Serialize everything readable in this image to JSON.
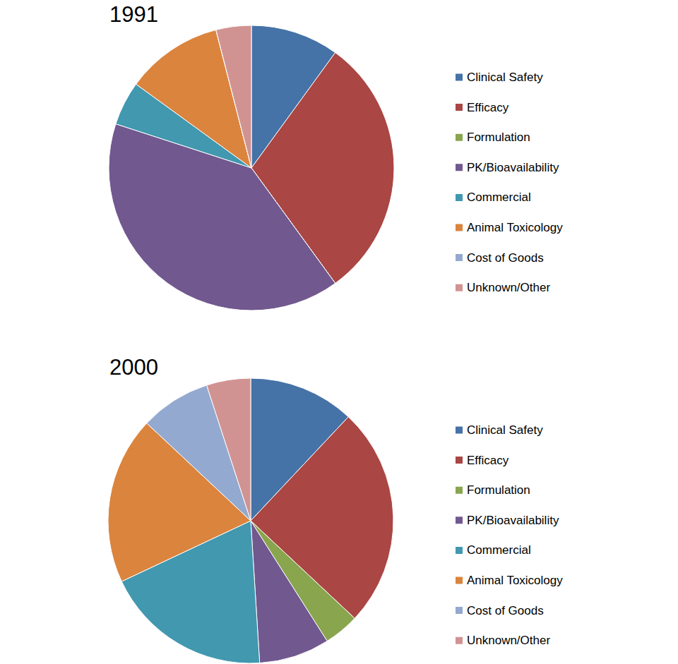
{
  "chart_data": [
    {
      "type": "pie",
      "title": "1991",
      "categories": [
        "Clinical Safety",
        "Efficacy",
        "Formulation",
        "PK/Bioavailability",
        "Commercial",
        "Animal Toxicology",
        "Cost of Goods",
        "Unknown/Other"
      ],
      "values": [
        10,
        30,
        0,
        40,
        5,
        11,
        0,
        4
      ],
      "colors": [
        "#4572a7",
        "#aa4643",
        "#89a54e",
        "#71588f",
        "#4198af",
        "#db843d",
        "#93a9cf",
        "#d19392"
      ],
      "legend": "right"
    },
    {
      "type": "pie",
      "title": "2000",
      "categories": [
        "Clinical Safety",
        "Efficacy",
        "Formulation",
        "PK/Bioavailability",
        "Commercial",
        "Animal Toxicology",
        "Cost of Goods",
        "Unknown/Other"
      ],
      "values": [
        12,
        25,
        4,
        8,
        19,
        19,
        8,
        5
      ],
      "colors": [
        "#4572a7",
        "#aa4643",
        "#89a54e",
        "#71588f",
        "#4198af",
        "#db843d",
        "#93a9cf",
        "#d19392"
      ],
      "legend": "right"
    }
  ]
}
